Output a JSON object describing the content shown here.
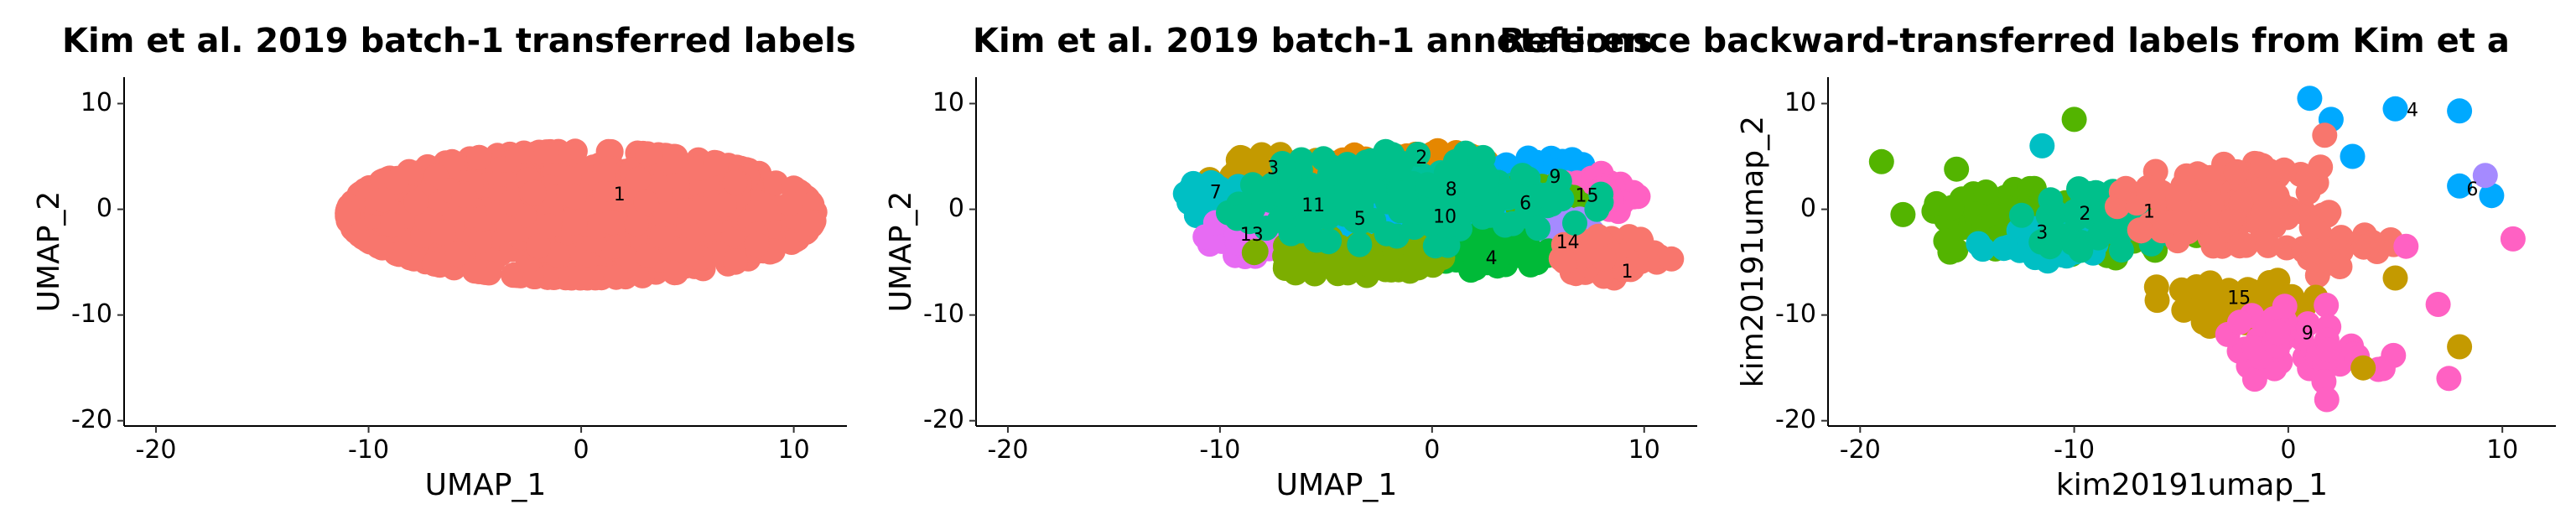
{
  "chart_data": [
    {
      "type": "scatter",
      "title": "Kim et al. 2019 batch-1 transferred labels",
      "xlabel": "UMAP_1",
      "ylabel": "UMAP_2",
      "xlim": [
        -21.5,
        12.5
      ],
      "ylim": [
        -20.5,
        12.5
      ],
      "xticks": [
        -20,
        -10,
        0,
        10
      ],
      "yticks": [
        -20,
        -10,
        0,
        10
      ],
      "grid": false,
      "legend": "none",
      "blobs": [
        {
          "cluster": "1",
          "color": "#F8766D",
          "cx": 0.0,
          "cy": -0.5,
          "rx": 11.0,
          "ry": 6.0,
          "n": 1300
        }
      ],
      "cluster_labels": [
        {
          "text": "1",
          "x": 1.8,
          "y": 1.3
        }
      ]
    },
    {
      "type": "scatter",
      "title": "Kim et al. 2019 batch-1 annotations",
      "xlabel": "UMAP_1",
      "ylabel": "UMAP_2",
      "xlim": [
        -21.5,
        12.5
      ],
      "ylim": [
        -20.5,
        12.5
      ],
      "xticks": [
        -20,
        -10,
        0,
        10
      ],
      "yticks": [
        -20,
        -10,
        0,
        10
      ],
      "grid": false,
      "legend": "none",
      "blobs": [
        {
          "cluster": "3",
          "color": "#C49A00",
          "cx": -7.5,
          "cy": 3.0,
          "rx": 3.0,
          "ry": 2.2,
          "n": 110
        },
        {
          "cluster": "2",
          "color": "#E58700",
          "cx": -1.0,
          "cy": 3.5,
          "rx": 4.0,
          "ry": 2.2,
          "n": 150
        },
        {
          "cluster": "9",
          "color": "#00A9FF",
          "cx": 5.5,
          "cy": 3.0,
          "rx": 2.5,
          "ry": 2.0,
          "n": 80
        },
        {
          "cluster": "15",
          "color": "#FF61C3",
          "cx": 7.5,
          "cy": 1.5,
          "rx": 2.5,
          "ry": 2.0,
          "n": 80
        },
        {
          "cluster": "7",
          "color": "#00BFC4",
          "cx": -10.0,
          "cy": 1.0,
          "rx": 1.8,
          "ry": 2.0,
          "n": 60
        },
        {
          "cluster": "11",
          "color": "#C77CFF",
          "cx": -6.0,
          "cy": 0.5,
          "rx": 2.2,
          "ry": 1.8,
          "n": 70
        },
        {
          "cluster": "8",
          "color": "#00C19A",
          "cx": 1.0,
          "cy": 1.5,
          "rx": 3.0,
          "ry": 2.0,
          "n": 100
        },
        {
          "cluster": "6",
          "color": "#53B400",
          "cx": 4.5,
          "cy": 0.5,
          "rx": 2.5,
          "ry": 2.0,
          "n": 90
        },
        {
          "cluster": "5",
          "color": "#00B6EB",
          "cx": -3.5,
          "cy": -1.0,
          "rx": 2.5,
          "ry": 2.0,
          "n": 80
        },
        {
          "cluster": "10",
          "color": "#00B0F6",
          "cx": 0.5,
          "cy": -0.5,
          "rx": 2.5,
          "ry": 2.0,
          "n": 80
        },
        {
          "cluster": "13",
          "color": "#E76BF3",
          "cx": -8.5,
          "cy": -2.5,
          "rx": 2.2,
          "ry": 2.0,
          "n": 70
        },
        {
          "cluster": "14",
          "color": "#A58AFF",
          "cx": 6.0,
          "cy": -2.5,
          "rx": 2.0,
          "ry": 1.8,
          "n": 60
        },
        {
          "cluster": "4",
          "color": "#00BA38",
          "cx": 2.5,
          "cy": -4.0,
          "rx": 3.0,
          "ry": 1.8,
          "n": 90
        },
        {
          "cluster": "1",
          "color": "#F8766D",
          "cx": 8.5,
          "cy": -4.5,
          "rx": 2.8,
          "ry": 2.0,
          "n": 90
        },
        {
          "cluster": "12",
          "color": "#7CAE00",
          "cx": -4.0,
          "cy": -4.5,
          "rx": 4.5,
          "ry": 1.8,
          "n": 120
        },
        {
          "cluster": "16",
          "color": "#00C08B",
          "cx": -1.0,
          "cy": 1.0,
          "rx": 9.0,
          "ry": 4.5,
          "n": 200
        }
      ],
      "cluster_labels": [
        {
          "text": "2",
          "x": -0.5,
          "y": 4.8
        },
        {
          "text": "3",
          "x": -7.5,
          "y": 3.8
        },
        {
          "text": "9",
          "x": 5.8,
          "y": 3.0
        },
        {
          "text": "7",
          "x": -10.2,
          "y": 1.5
        },
        {
          "text": "8",
          "x": 0.9,
          "y": 1.8
        },
        {
          "text": "15",
          "x": 7.3,
          "y": 1.2
        },
        {
          "text": "11",
          "x": -5.6,
          "y": 0.3
        },
        {
          "text": "6",
          "x": 4.4,
          "y": 0.5
        },
        {
          "text": "5",
          "x": -3.4,
          "y": -1.0
        },
        {
          "text": "10",
          "x": 0.6,
          "y": -0.8
        },
        {
          "text": "13",
          "x": -8.5,
          "y": -2.5
        },
        {
          "text": "14",
          "x": 6.4,
          "y": -3.2
        },
        {
          "text": "4",
          "x": 2.8,
          "y": -4.7
        },
        {
          "text": "1",
          "x": 9.2,
          "y": -6.0
        }
      ]
    },
    {
      "type": "scatter",
      "title": "Reference backward-transferred labels from Kim et a",
      "xlabel": "kim20191umap_1",
      "ylabel": "kim20191umap_2",
      "xlim": [
        -21.5,
        12.5
      ],
      "ylim": [
        -20.5,
        12.5
      ],
      "xticks": [
        -20,
        -10,
        0,
        10
      ],
      "yticks": [
        -20,
        -10,
        0,
        10
      ],
      "grid": false,
      "legend": "none",
      "blobs": [
        {
          "cluster": "3",
          "color": "#53B400",
          "cx": -11.0,
          "cy": -1.5,
          "rx": 7.0,
          "ry": 3.5,
          "n": 140
        },
        {
          "cluster": "3b",
          "color": "#00BFC4",
          "cx": -11.5,
          "cy": -3.0,
          "rx": 3.0,
          "ry": 2.0,
          "n": 40
        },
        {
          "cluster": "2",
          "color": "#00C08B",
          "cx": -9.0,
          "cy": -1.0,
          "rx": 4.0,
          "ry": 3.0,
          "n": 50
        },
        {
          "cluster": "1",
          "color": "#F8766D",
          "cx": -3.0,
          "cy": 0.5,
          "rx": 5.0,
          "ry": 4.0,
          "n": 150
        },
        {
          "cluster": "1b",
          "color": "#F8766D",
          "cx": 2.0,
          "cy": -4.0,
          "rx": 3.0,
          "ry": 3.0,
          "n": 25
        },
        {
          "cluster": "15",
          "color": "#C49A00",
          "cx": -2.5,
          "cy": -9.0,
          "rx": 5.0,
          "ry": 2.5,
          "n": 50
        },
        {
          "cluster": "9",
          "color": "#FF61C3",
          "cx": 1.0,
          "cy": -13.0,
          "rx": 4.0,
          "ry": 4.0,
          "n": 50
        }
      ],
      "points": [
        {
          "x": -19.0,
          "y": 4.5,
          "color": "#53B400"
        },
        {
          "x": -18.0,
          "y": -0.5,
          "color": "#53B400"
        },
        {
          "x": -15.5,
          "y": 3.8,
          "color": "#53B400"
        },
        {
          "x": -16.0,
          "y": -3.0,
          "color": "#53B400"
        },
        {
          "x": -10.0,
          "y": 8.5,
          "color": "#53B400"
        },
        {
          "x": -11.5,
          "y": 6.0,
          "color": "#00BFC4"
        },
        {
          "x": 1.0,
          "y": 10.5,
          "color": "#00A9FF"
        },
        {
          "x": 2.0,
          "y": 8.5,
          "color": "#00A9FF"
        },
        {
          "x": 5.0,
          "y": 9.5,
          "color": "#00A9FF"
        },
        {
          "x": 8.0,
          "y": 9.3,
          "color": "#00A9FF"
        },
        {
          "x": 3.0,
          "y": 5.0,
          "color": "#00A9FF"
        },
        {
          "x": 8.0,
          "y": 2.2,
          "color": "#00A9FF"
        },
        {
          "x": 9.5,
          "y": 1.3,
          "color": "#00A9FF"
        },
        {
          "x": 9.2,
          "y": 3.2,
          "color": "#A58AFF"
        },
        {
          "x": 1.7,
          "y": 7.0,
          "color": "#F8766D"
        },
        {
          "x": 1.5,
          "y": 4.0,
          "color": "#F8766D"
        },
        {
          "x": 10.5,
          "y": -2.8,
          "color": "#FF61C3"
        },
        {
          "x": 7.0,
          "y": -9.0,
          "color": "#FF61C3"
        },
        {
          "x": 5.5,
          "y": -3.5,
          "color": "#FF61C3"
        },
        {
          "x": 8.0,
          "y": -13.0,
          "color": "#C49A00"
        },
        {
          "x": 3.5,
          "y": -15.0,
          "color": "#C49A00"
        },
        {
          "x": 7.5,
          "y": -16.0,
          "color": "#FF61C3"
        },
        {
          "x": 1.8,
          "y": -18.0,
          "color": "#FF61C3"
        },
        {
          "x": 5.0,
          "y": -6.5,
          "color": "#C49A00"
        }
      ],
      "cluster_labels": [
        {
          "text": "4",
          "x": 5.8,
          "y": 9.3
        },
        {
          "text": "6",
          "x": 8.6,
          "y": 1.8
        },
        {
          "text": "2",
          "x": -9.5,
          "y": -0.5
        },
        {
          "text": "1",
          "x": -6.5,
          "y": -0.3
        },
        {
          "text": "3",
          "x": -11.5,
          "y": -2.3
        },
        {
          "text": "15",
          "x": -2.3,
          "y": -8.5
        },
        {
          "text": "9",
          "x": 0.9,
          "y": -11.8
        }
      ]
    }
  ]
}
